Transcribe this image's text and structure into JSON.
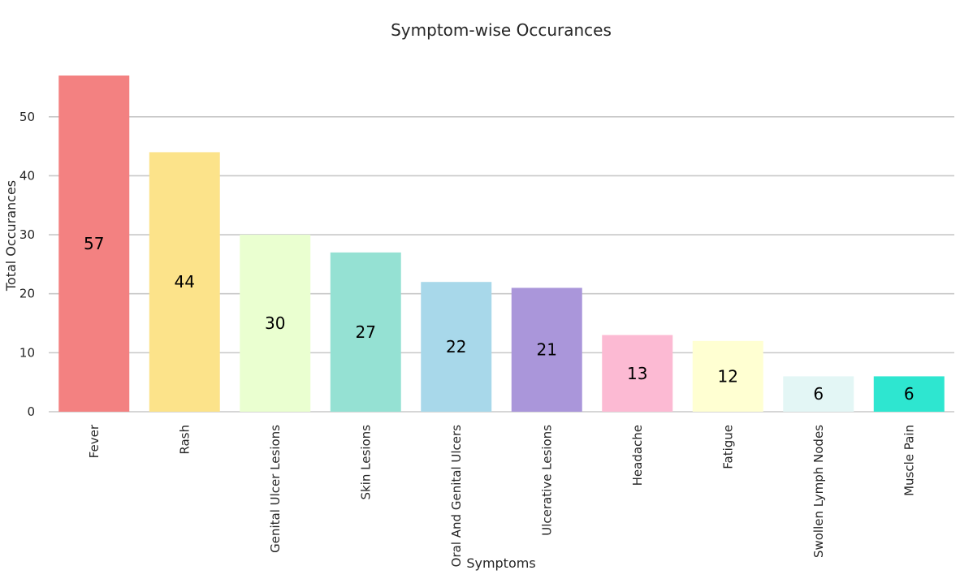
{
  "chart_data": {
    "type": "bar",
    "title": "Symptom-wise Occurances",
    "xlabel": "Symptoms",
    "ylabel": "Total Occurances",
    "categories": [
      "Fever",
      "Rash",
      "Genital Ulcer Lesions",
      "Skin Lesions",
      "Oral And Genital Ulcers",
      "Ulcerative Lesions",
      "Headache",
      "Fatigue",
      "Swollen Lymph Nodes",
      "Muscle Pain"
    ],
    "values": [
      57,
      44,
      30,
      27,
      22,
      21,
      13,
      12,
      6,
      6
    ],
    "data_labels": [
      "57",
      "44",
      "30",
      "27",
      "22",
      "21",
      "13",
      "12",
      "6",
      "6"
    ],
    "colors": [
      "#f38181",
      "#fce38a",
      "#eaffd0",
      "#95e1d3",
      "#a8d8ea",
      "#aa96da",
      "#fcbad3",
      "#ffffd2",
      "#e3f6f5",
      "#2ee6d0"
    ],
    "ylim": [
      0,
      57
    ],
    "yticks": [
      0,
      10,
      20,
      30,
      40,
      50
    ],
    "ytick_labels": [
      "0",
      "10",
      "20",
      "30",
      "40",
      "50"
    ],
    "grid": "horizontal",
    "legend": "none"
  }
}
